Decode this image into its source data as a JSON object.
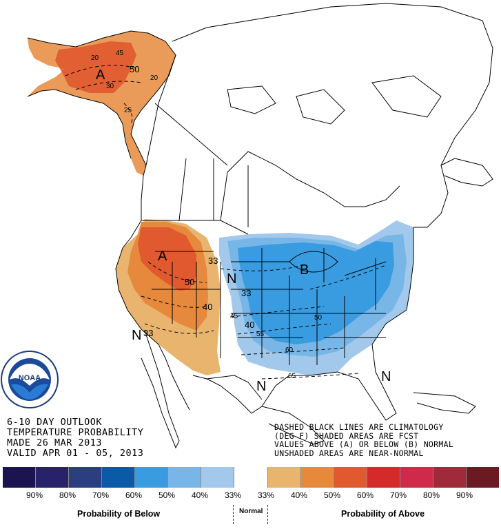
{
  "outlook": {
    "title_line1": "6-10 DAY OUTLOOK",
    "title_line2": "TEMPERATURE PROBABILITY",
    "made_line": "MADE  26 MAR 2013",
    "valid_line": "VALID  APR 01 - 05, 2013"
  },
  "notes": {
    "line1": "DASHED BLACK LINES ARE CLIMATOLOGY",
    "line2": "(DEG F) SHADED AREAS ARE FCST",
    "line3": "VALUES ABOVE (A) OR BELOW (B) NORMAL",
    "line4": "UNSHADED AREAS ARE NEAR-NORMAL"
  },
  "logo": {
    "text": "NOAA",
    "name": "noaa-logo"
  },
  "region_markers": {
    "alaska_above": "A",
    "west_above": "A",
    "east_below": "B",
    "normal_central": "N",
    "normal_southwest": "N",
    "normal_gulf": "N",
    "normal_southeast": "N"
  },
  "contour_labels": {
    "ak_50": "50",
    "ak_20_a": "20",
    "ak_20_b": "20",
    "ak_45": "45",
    "ak_30": "30",
    "ak_25": "25",
    "west_50": "50",
    "west_40": "40",
    "west_33_a": "33",
    "west_33_b": "33",
    "central_33": "33",
    "central_45": "45",
    "central_40": "40",
    "central_55": "55",
    "east_50": "50",
    "east_60": "60",
    "gulf_65": "65"
  },
  "legend": {
    "swatches": [
      "#1c1450",
      "#27226a",
      "#2b3e80",
      "#0b5aa8",
      "#3a9ce0",
      "#78b6e8",
      "#a2c9ec",
      "#ffffff",
      "#e8b46e",
      "#e6893d",
      "#e0592f",
      "#d42a2a",
      "#d02a4a",
      "#a12a3a",
      "#6b1a22"
    ],
    "labels": [
      "90%",
      "80%",
      "70%",
      "60%",
      "50%",
      "40%",
      "33%",
      "33%",
      "40%",
      "50%",
      "60%",
      "70%",
      "80%",
      "90%"
    ],
    "below_title": "Probability of Below",
    "normal_title": "Normal",
    "above_title": "Probability of Above"
  },
  "colors": {
    "above_40": "#e8b46e",
    "above_50": "#e6893d",
    "above_60": "#e0592f",
    "below_33": "#a2c9ec",
    "below_40": "#78b6e8",
    "below_50": "#3a9ce0"
  }
}
